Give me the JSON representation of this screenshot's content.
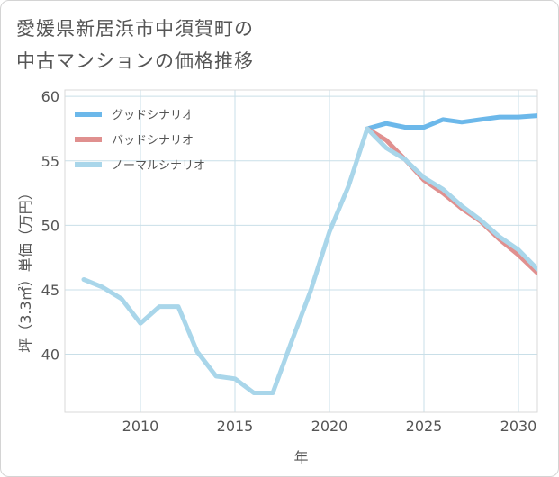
{
  "chart_data": {
    "type": "line",
    "title_line1": "愛媛県新居浜市中須賀町の",
    "title_line2": "中古マンションの価格推移",
    "xlabel": "年",
    "ylabel": "坪（3.3㎡）単価（万円）",
    "xlim": [
      2006,
      2031
    ],
    "ylim": [
      35.5,
      60.5
    ],
    "xticks": [
      2010,
      2015,
      2020,
      2025,
      2030
    ],
    "yticks": [
      40,
      45,
      50,
      55,
      60
    ],
    "grid": true,
    "legend_position": "top-left",
    "series": [
      {
        "name": "グッドシナリオ",
        "color": "#6cb8ea",
        "points": [
          [
            2022,
            57.5
          ],
          [
            2023,
            57.9
          ],
          [
            2024,
            57.6
          ],
          [
            2025,
            57.6
          ],
          [
            2026,
            58.2
          ],
          [
            2027,
            58.0
          ],
          [
            2028,
            58.2
          ],
          [
            2029,
            58.4
          ],
          [
            2030,
            58.4
          ],
          [
            2031,
            58.5
          ]
        ]
      },
      {
        "name": "バッドシナリオ",
        "color": "#e0908f",
        "points": [
          [
            2022,
            57.5
          ],
          [
            2023,
            56.6
          ],
          [
            2024,
            55.1
          ],
          [
            2025,
            53.5
          ],
          [
            2026,
            52.5
          ],
          [
            2027,
            51.3
          ],
          [
            2028,
            50.3
          ],
          [
            2029,
            48.9
          ],
          [
            2030,
            47.7
          ],
          [
            2031,
            46.3
          ]
        ]
      },
      {
        "name": "ノーマルシナリオ",
        "color": "#a9d6ea",
        "points": [
          [
            2007,
            45.8
          ],
          [
            2008,
            45.2
          ],
          [
            2009,
            44.3
          ],
          [
            2010,
            42.4
          ],
          [
            2011,
            43.7
          ],
          [
            2012,
            43.7
          ],
          [
            2013,
            40.2
          ],
          [
            2014,
            38.3
          ],
          [
            2015,
            38.1
          ],
          [
            2016,
            37.0
          ],
          [
            2017,
            37.0
          ],
          [
            2018,
            41.0
          ],
          [
            2019,
            44.9
          ],
          [
            2020,
            49.5
          ],
          [
            2021,
            53.0
          ],
          [
            2022,
            57.5
          ],
          [
            2023,
            56.0
          ],
          [
            2024,
            55.1
          ],
          [
            2025,
            53.7
          ],
          [
            2026,
            52.8
          ],
          [
            2027,
            51.5
          ],
          [
            2028,
            50.4
          ],
          [
            2029,
            49.1
          ],
          [
            2030,
            48.1
          ],
          [
            2031,
            46.6
          ]
        ]
      }
    ]
  }
}
